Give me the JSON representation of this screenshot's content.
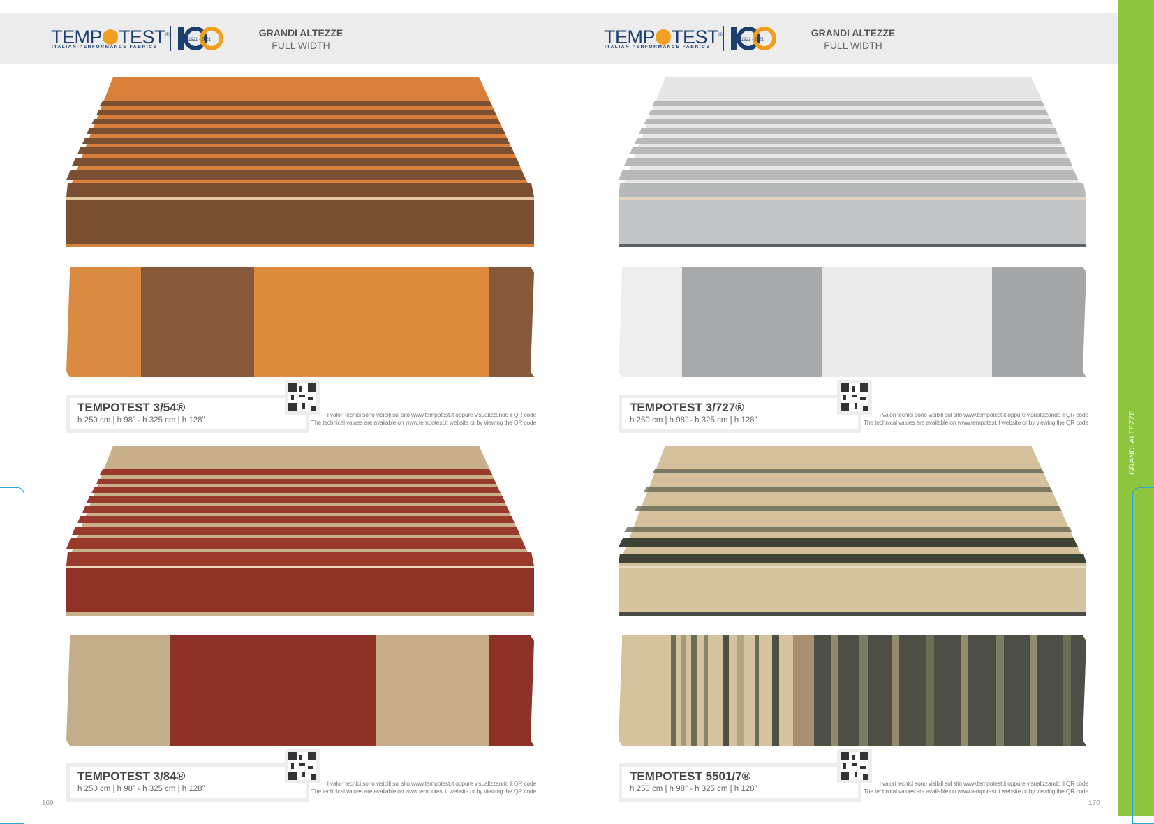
{
  "header": {
    "brand": "TEMP TEST",
    "brand_tagline": "ITALIAN PERFORMANCE FABRICS",
    "anniversary": "1921 - 2021",
    "title": "GRANDI ALTEZZE",
    "subtitle": "FULL WIDTH"
  },
  "side_label": "GRANDI ALTEZZE",
  "note": {
    "line1": "I valori tecnici sono visibili sul sito www.tempotest.it oppure visualizzando il QR code",
    "line2": "The technical values are available on www.tempotest.it website or by viewing the QR code"
  },
  "products": [
    {
      "name": "TEMPOTEST 3/54®",
      "dims": "h 250 cm | h 98” - h  325 cm | h 128”"
    },
    {
      "name": "TEMPOTEST 3/727®",
      "dims": "h 250 cm | h 98” - h  325 cm | h 128”"
    },
    {
      "name": "TEMPOTEST 3/84®",
      "dims": "h 250 cm | h 98” - h  325 cm | h 128”"
    },
    {
      "name": "TEMPOTEST 5501/7®",
      "dims": "h 250 cm | h 98” - h  325 cm | h 128”"
    }
  ],
  "page_numbers": {
    "left": "169",
    "right": "170"
  },
  "colors": {
    "brand_blue": "#1e3f6e",
    "brand_orange": "#f0a020",
    "side_green": "#8cc63f",
    "tab_blue": "#2aa3d8"
  }
}
